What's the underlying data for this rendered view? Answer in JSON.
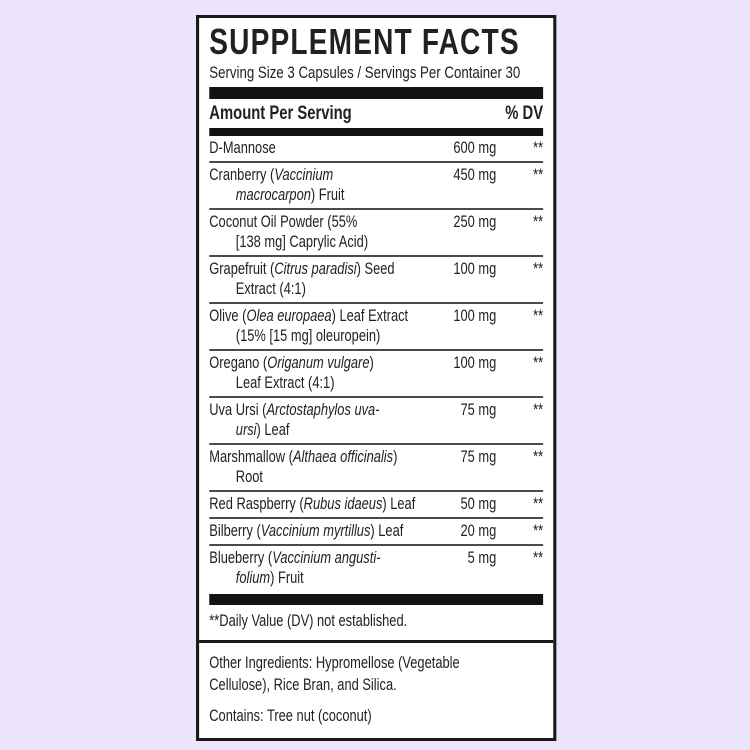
{
  "colors": {
    "page_background": "#ebe4fa",
    "label_background": "#ffffff",
    "text": "#242021",
    "bars_and_border": "#1c191a",
    "row_hairline": "#4b4b4b"
  },
  "label": {
    "title": "SUPPLEMENT FACTS",
    "serving_info": "Serving Size 3 Capsules / Servings Per Container 30",
    "header": {
      "amount": "Amount Per Serving",
      "dv": "% DV"
    },
    "rows": [
      {
        "name": "D-Mannose",
        "amount": "600 mg",
        "dv": "**"
      },
      {
        "name": "Cranberry (*Vaccinium*\n*macrocarpon*) Fruit",
        "amount": "450 mg",
        "dv": "**"
      },
      {
        "name": "Coconut Oil Powder (55%\n[138 mg] Caprylic Acid)",
        "amount": "250 mg",
        "dv": "**"
      },
      {
        "name": "Grapefruit (*Citrus paradisi*) Seed\nExtract (4:1)",
        "amount": "100 mg",
        "dv": "**"
      },
      {
        "name": "Olive (*Olea europaea*) Leaf Extract\n(15% [15 mg] oleuropein)",
        "amount": "100 mg",
        "dv": "**"
      },
      {
        "name": "Oregano (*Origanum vulgare*)\nLeaf Extract (4:1)",
        "amount": "100 mg",
        "dv": "**"
      },
      {
        "name": "Uva Ursi (*Arctostaphylos uva-*\n*ursi*) Leaf",
        "amount": "75 mg",
        "dv": "**"
      },
      {
        "name": "Marshmallow (*Althaea officinalis*)\nRoot",
        "amount": "75 mg",
        "dv": "**"
      },
      {
        "name": "Red Raspberry (*Rubus idaeus*) Leaf",
        "amount": "50 mg",
        "dv": "**"
      },
      {
        "name": "Bilberry (*Vaccinium myrtillus*) Leaf",
        "amount": "20 mg",
        "dv": "**"
      },
      {
        "name": "Blueberry (*Vaccinium angusti-*\n*folium*) Fruit",
        "amount": "5 mg",
        "dv": "**"
      }
    ],
    "footnote": "**Daily Value (DV) not established.",
    "other_ingredients": "Other Ingredients: Hypromellose (Vegetable\nCellulose), Rice Bran, and Silica.",
    "contains": "Contains: Tree nut (coconut)"
  }
}
